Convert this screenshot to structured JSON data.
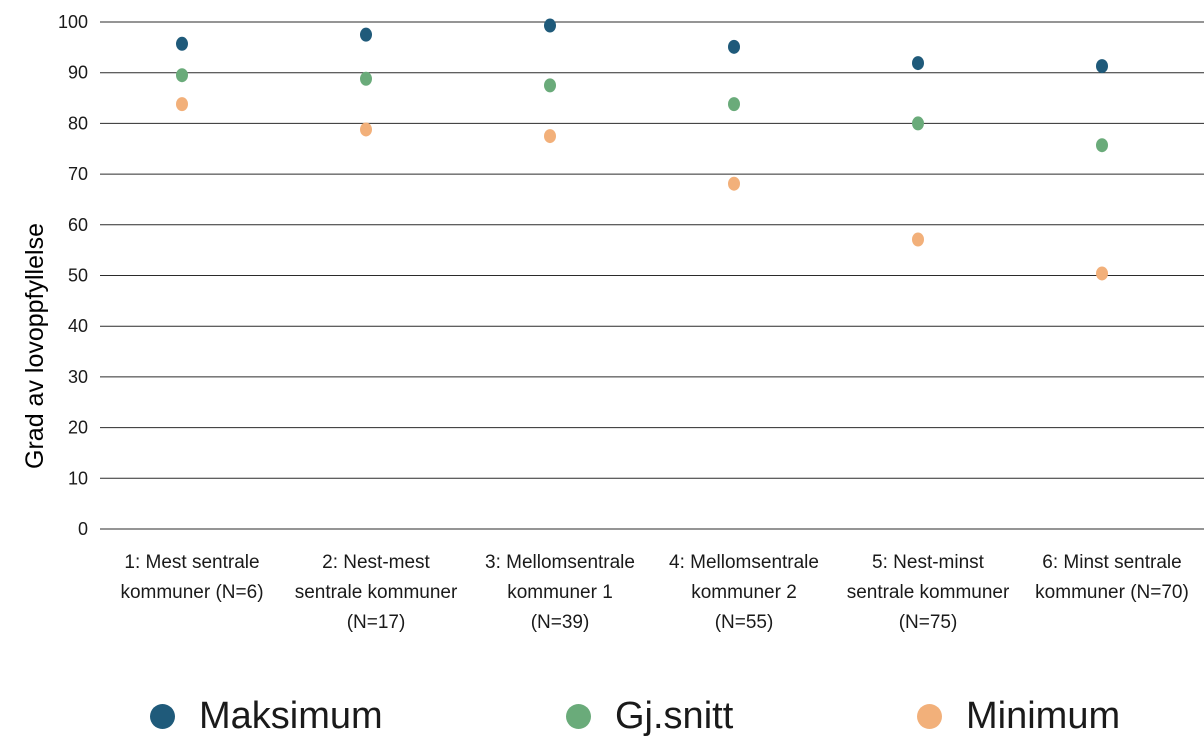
{
  "chart_data": {
    "type": "scatter",
    "title": "",
    "xlabel": "",
    "ylabel": "Grad av lovoppfyllelse",
    "ylim": [
      0,
      100
    ],
    "yticks": [
      0,
      10,
      20,
      30,
      40,
      50,
      60,
      70,
      80,
      90,
      100
    ],
    "grid": "horizontal",
    "legend_position": "bottom",
    "categories": [
      [
        "1: Mest sentrale",
        "kommuner (N=6)"
      ],
      [
        "2: Nest-mest",
        "sentrale kommuner",
        "(N=17)"
      ],
      [
        "3: Mellomsentrale",
        "kommuner 1",
        "(N=39)"
      ],
      [
        "4: Mellomsentrale",
        "kommuner 2",
        "(N=55)"
      ],
      [
        "5: Nest-minst",
        "sentrale kommuner",
        "(N=75)"
      ],
      [
        "6: Minst sentrale",
        "kommuner (N=70)"
      ]
    ],
    "series": [
      {
        "name": "Maksimum",
        "color": "#1f5a7a",
        "values": [
          95.7,
          97.5,
          99.3,
          95.1,
          91.9,
          91.3
        ]
      },
      {
        "name": "Gj.snitt",
        "color": "#6aab7a",
        "values": [
          89.5,
          88.8,
          87.5,
          83.8,
          80.0,
          75.7
        ]
      },
      {
        "name": "Minimum",
        "color": "#f2b07a",
        "values": [
          83.8,
          78.8,
          77.5,
          68.1,
          57.1,
          50.4
        ]
      }
    ]
  }
}
